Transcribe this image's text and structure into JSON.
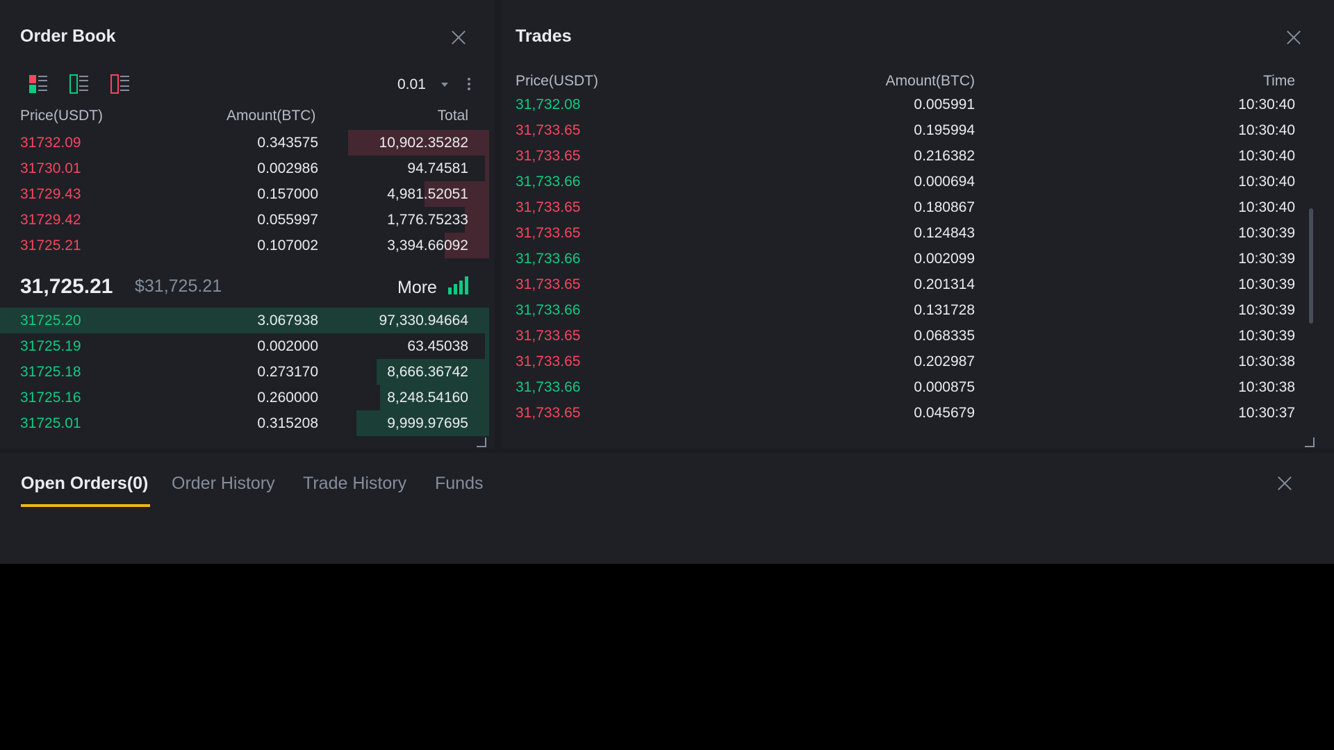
{
  "colors": {
    "up": "#0ecb81",
    "down": "#f6465d",
    "accent": "#f0b90b"
  },
  "orderbook": {
    "title": "Order Book",
    "close_icon": "close-icon",
    "view_icons": [
      "orderbook-both-icon",
      "orderbook-bids-icon",
      "orderbook-asks-icon"
    ],
    "tick_size": "0.01",
    "columns": {
      "price": "Price(USDT)",
      "amount": "Amount(BTC)",
      "total": "Total"
    },
    "asks": [
      {
        "price": "31732.09",
        "amount": "0.343575",
        "total": "10,902.35282",
        "depth_pct": 35
      },
      {
        "price": "31730.01",
        "amount": "0.002986",
        "total": "94.74581",
        "depth_pct": 1
      },
      {
        "price": "31729.43",
        "amount": "0.157000",
        "total": "4,981.52051",
        "depth_pct": 16
      },
      {
        "price": "31729.42",
        "amount": "0.055997",
        "total": "1,776.75233",
        "depth_pct": 6
      },
      {
        "price": "31725.21",
        "amount": "0.107002",
        "total": "3,394.66092",
        "depth_pct": 11
      }
    ],
    "mid": {
      "price": "31,725.21",
      "usd": "$31,725.21",
      "more_label": "More"
    },
    "bids": [
      {
        "price": "31725.20",
        "amount": "3.067938",
        "total": "97,330.94664",
        "depth_pct": 100
      },
      {
        "price": "31725.19",
        "amount": "0.002000",
        "total": "63.45038",
        "depth_pct": 1
      },
      {
        "price": "31725.18",
        "amount": "0.273170",
        "total": "8,666.36742",
        "depth_pct": 28
      },
      {
        "price": "31725.16",
        "amount": "0.260000",
        "total": "8,248.54160",
        "depth_pct": 27
      },
      {
        "price": "31725.01",
        "amount": "0.315208",
        "total": "9,999.97695",
        "depth_pct": 33
      }
    ]
  },
  "trades": {
    "title": "Trades",
    "close_icon": "close-icon",
    "columns": {
      "price": "Price(USDT)",
      "amount": "Amount(BTC)",
      "time": "Time"
    },
    "rows": [
      {
        "price": "31,732.08",
        "amount": "0.005991",
        "time": "10:30:40",
        "side": "up"
      },
      {
        "price": "31,733.65",
        "amount": "0.195994",
        "time": "10:30:40",
        "side": "down"
      },
      {
        "price": "31,733.65",
        "amount": "0.216382",
        "time": "10:30:40",
        "side": "down"
      },
      {
        "price": "31,733.66",
        "amount": "0.000694",
        "time": "10:30:40",
        "side": "up"
      },
      {
        "price": "31,733.65",
        "amount": "0.180867",
        "time": "10:30:40",
        "side": "down"
      },
      {
        "price": "31,733.65",
        "amount": "0.124843",
        "time": "10:30:39",
        "side": "down"
      },
      {
        "price": "31,733.66",
        "amount": "0.002099",
        "time": "10:30:39",
        "side": "up"
      },
      {
        "price": "31,733.65",
        "amount": "0.201314",
        "time": "10:30:39",
        "side": "down"
      },
      {
        "price": "31,733.66",
        "amount": "0.131728",
        "time": "10:30:39",
        "side": "up"
      },
      {
        "price": "31,733.65",
        "amount": "0.068335",
        "time": "10:30:39",
        "side": "down"
      },
      {
        "price": "31,733.65",
        "amount": "0.202987",
        "time": "10:30:38",
        "side": "down"
      },
      {
        "price": "31,733.66",
        "amount": "0.000875",
        "time": "10:30:38",
        "side": "up"
      },
      {
        "price": "31,733.65",
        "amount": "0.045679",
        "time": "10:30:37",
        "side": "down"
      }
    ]
  },
  "orders_panel": {
    "tabs": [
      "Open Orders(0)",
      "Order History",
      "Trade History",
      "Funds"
    ],
    "active_tab": 0,
    "close_icon": "close-icon"
  }
}
